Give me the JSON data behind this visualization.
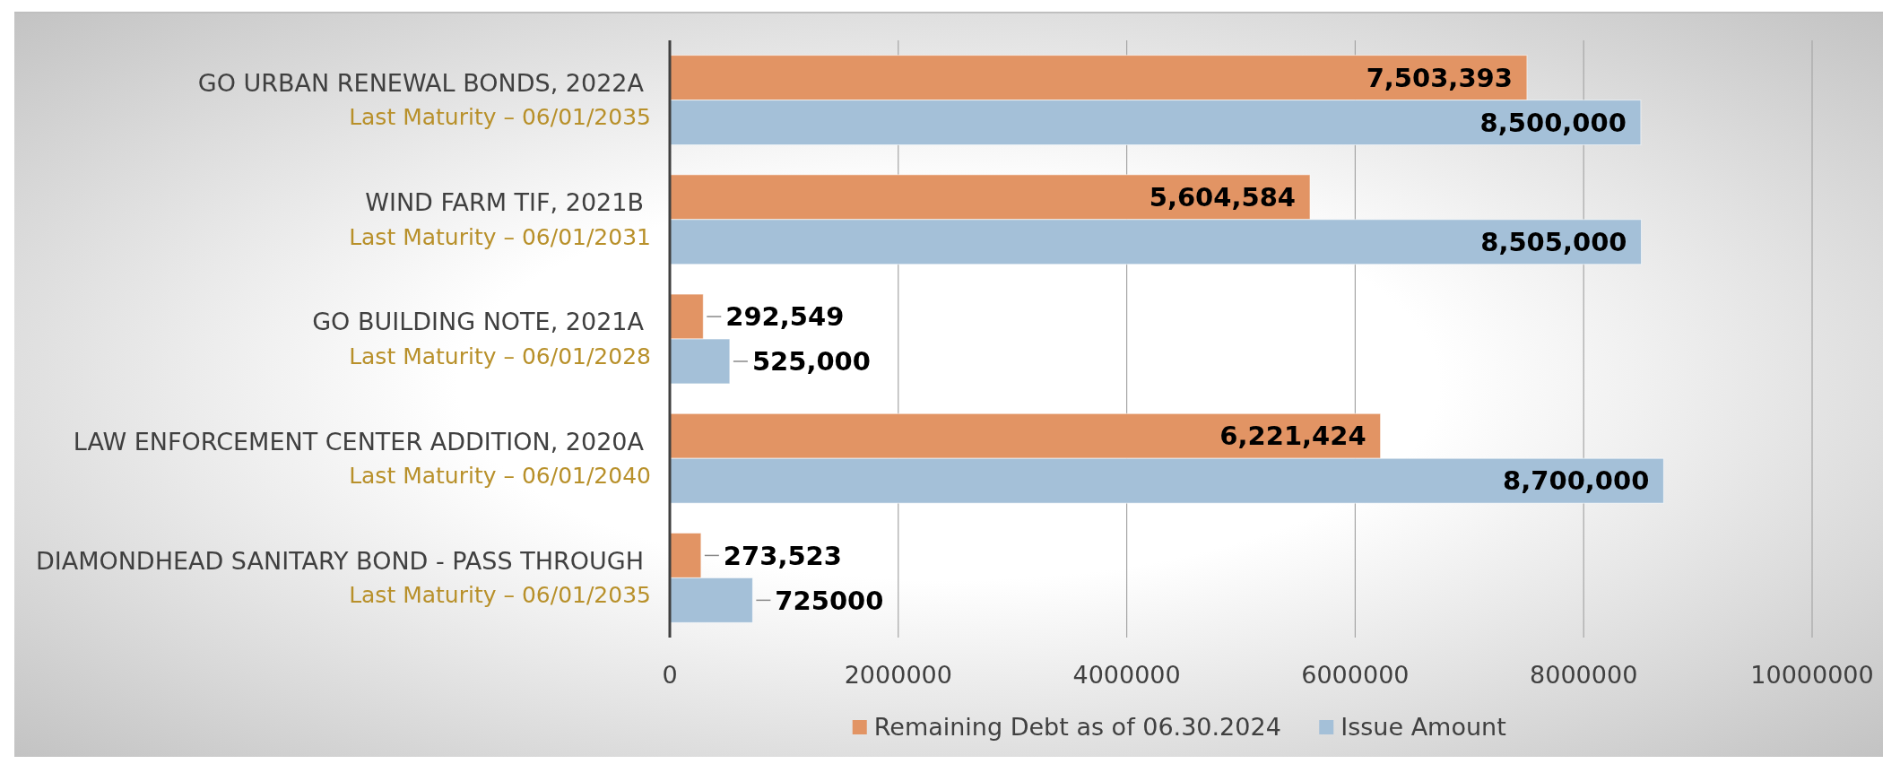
{
  "chart_data": {
    "type": "bar",
    "orientation": "horizontal",
    "categories": [
      "GO URBAN RENEWAL BONDS, 2022A\nLast Maturity – 06/01/2035",
      "WIND FARM TIF, 2021B\nLast Maturity – 06/01/2031",
      "GO BUILDING NOTE, 2021A\nLast Maturity – 06/01/2028",
      "LAW ENFORCEMENT CENTER ADDITION, 2020A\nLast Maturity – 06/01/2040",
      "DIAMONDHEAD SANITARY BOND - PASS THROUGH\nLast Maturity – 06/01/2035"
    ],
    "series": [
      {
        "name": "Remaining Debt as of 06.30.2024",
        "color": "#e29464",
        "values": [
          7503393,
          5604584,
          292549,
          6221424,
          273523
        ],
        "value_labels": [
          "7,503,393",
          "5,604,584",
          "292,549",
          "6,221,424",
          "273,523"
        ]
      },
      {
        "name": "Issue Amount",
        "color": "#a4c0d8",
        "values": [
          8500000,
          8505000,
          525000,
          8700000,
          725000
        ],
        "value_labels": [
          "8,500,000",
          "8,505,000",
          "525,000",
          "8,700,000",
          "725000"
        ]
      }
    ],
    "xlim": [
      0,
      10000000
    ],
    "xticks": [
      0,
      2000000,
      4000000,
      6000000,
      8000000,
      10000000
    ],
    "grid": "x",
    "legend": "bottom"
  }
}
